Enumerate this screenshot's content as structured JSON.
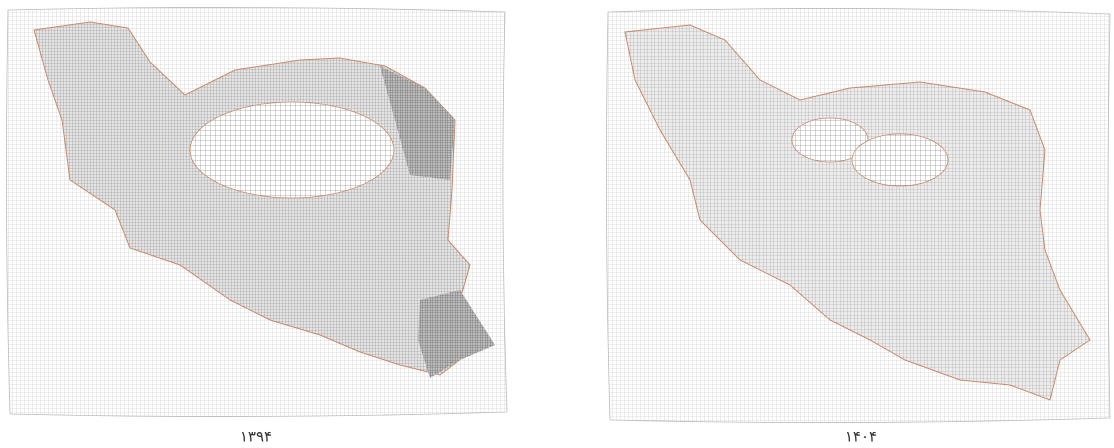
{
  "maps": [
    {
      "label": "۱۳۹۴"
    },
    {
      "label": "۱۴۰۴"
    }
  ]
}
